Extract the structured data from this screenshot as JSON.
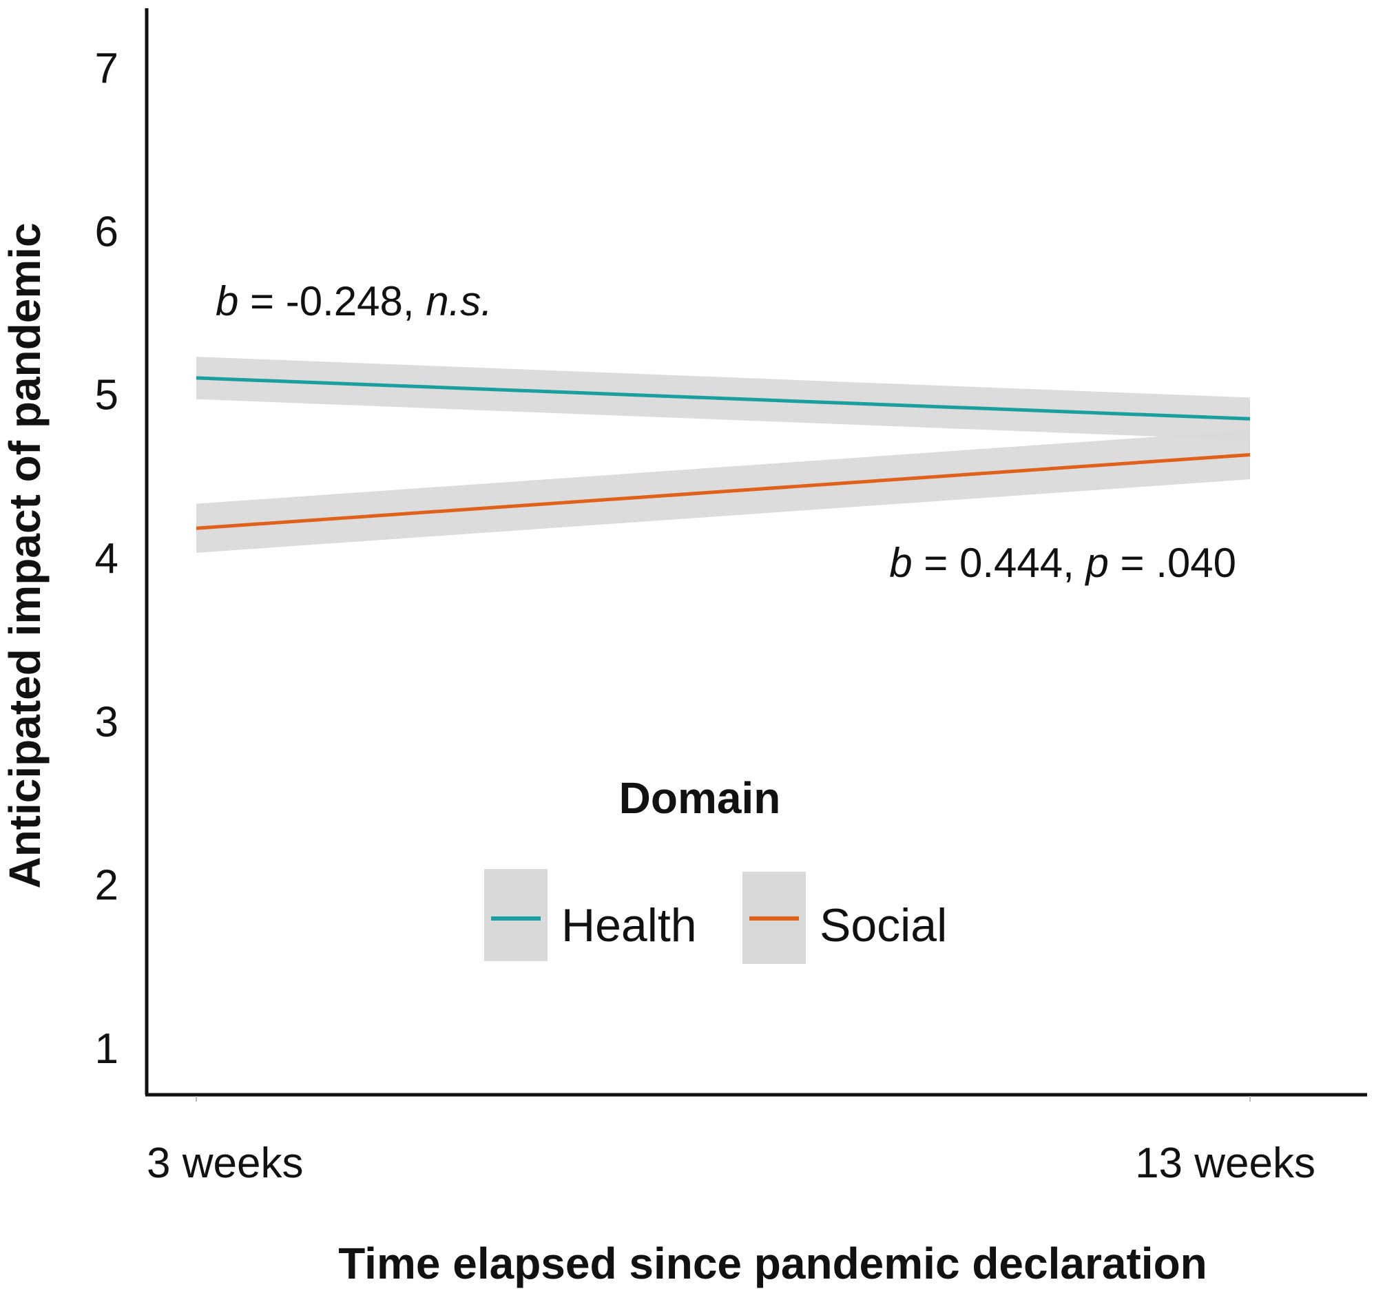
{
  "chart_data": {
    "type": "line",
    "title": "",
    "xlabel": "Time elapsed since pandemic declaration",
    "ylabel": "Anticipated impact of pandemic",
    "categories": [
      "3 weeks",
      "13 weeks"
    ],
    "yticks": [
      1,
      2,
      3,
      4,
      5,
      6,
      7
    ],
    "ylim": [
      0.7,
      7.4
    ],
    "grid": false,
    "series": [
      {
        "name": "Health",
        "color": "#1b9e9e",
        "values": [
          5.1,
          4.85
        ],
        "ci_lower": [
          4.97,
          4.72
        ],
        "ci_upper": [
          5.23,
          4.98
        ]
      },
      {
        "name": "Social",
        "color": "#e0611c",
        "values": [
          4.18,
          4.63
        ],
        "ci_lower": [
          4.03,
          4.48
        ],
        "ci_upper": [
          4.33,
          4.78
        ]
      }
    ],
    "annotations": [
      {
        "series": "Health",
        "parts": [
          {
            "text": "b",
            "italic": true
          },
          {
            "text": " = -0.248, ",
            "italic": false
          },
          {
            "text": "n.s.",
            "italic": true
          }
        ]
      },
      {
        "series": "Social",
        "parts": [
          {
            "text": "b",
            "italic": true
          },
          {
            "text": " = 0.444, ",
            "italic": false
          },
          {
            "text": "p",
            "italic": true
          },
          {
            "text": " = .040",
            "italic": false
          }
        ]
      }
    ],
    "legend": {
      "title": "Domain",
      "placement": "lower-center",
      "ci_color": "#d9d9d9"
    }
  }
}
